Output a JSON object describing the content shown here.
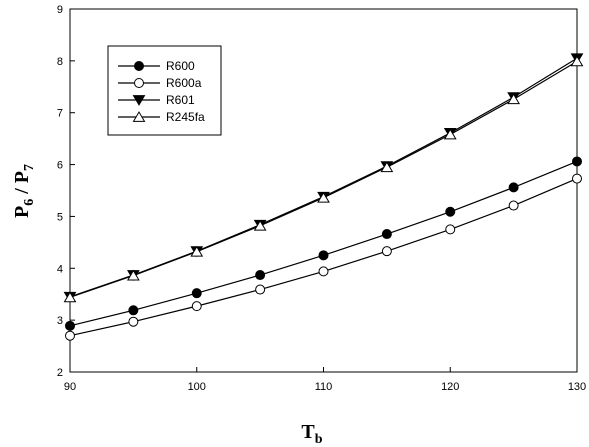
{
  "chart_data": {
    "type": "line",
    "title": "",
    "xlabel": {
      "main": "T",
      "sub": "b"
    },
    "ylabel": {
      "a": "P",
      "a_sub": "6",
      "sep": " / ",
      "b": "P",
      "b_sub": "7"
    },
    "xlim": [
      90,
      130
    ],
    "ylim": [
      2,
      9
    ],
    "x_ticks": [
      90,
      100,
      110,
      120,
      130
    ],
    "y_ticks": [
      2,
      3,
      4,
      5,
      6,
      7,
      8,
      9
    ],
    "grid": false,
    "legend_position": "top-left",
    "x": [
      90,
      95,
      100,
      105,
      110,
      115,
      120,
      125,
      130
    ],
    "series": [
      {
        "name": "R600",
        "marker": "filled-circle",
        "values": [
          2.89,
          3.19,
          3.52,
          3.87,
          4.25,
          4.66,
          5.09,
          5.56,
          6.06
        ]
      },
      {
        "name": "R600a",
        "marker": "open-circle",
        "values": [
          2.7,
          2.97,
          3.27,
          3.59,
          3.94,
          4.33,
          4.75,
          5.21,
          5.73
        ]
      },
      {
        "name": "R601",
        "marker": "filled-triangle-down",
        "values": [
          3.45,
          3.87,
          4.33,
          4.84,
          5.38,
          5.97,
          6.61,
          7.3,
          8.05
        ]
      },
      {
        "name": "R245fa",
        "marker": "open-triangle-up",
        "values": [
          3.44,
          3.86,
          4.32,
          4.82,
          5.36,
          5.95,
          6.58,
          7.26,
          7.99
        ]
      }
    ]
  }
}
